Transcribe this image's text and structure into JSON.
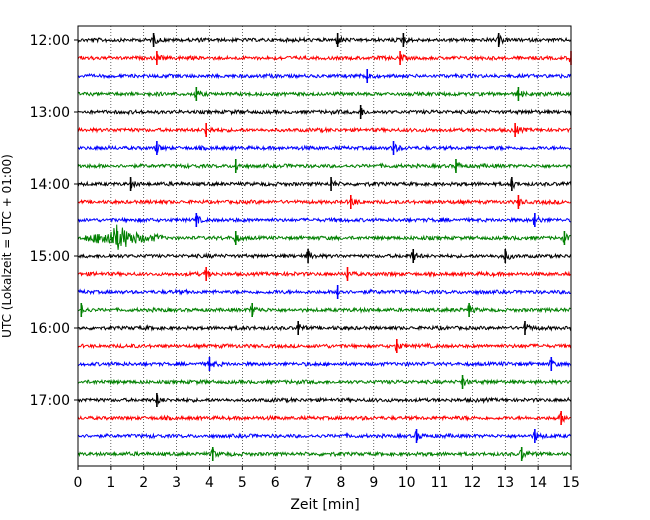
{
  "chart_data": {
    "type": "line",
    "title": "",
    "xlabel": "Zeit  [min]",
    "ylabel": "UTC (Lokalzeit = UTC + 01:00)",
    "xlim": [
      0,
      15
    ],
    "x_ticks": [
      "0",
      "1",
      "2",
      "3",
      "4",
      "5",
      "6",
      "7",
      "8",
      "9",
      "10",
      "11",
      "12",
      "13",
      "14",
      "15"
    ],
    "y_ticks": [
      "12:00",
      "13:00",
      "14:00",
      "15:00",
      "16:00",
      "17:00"
    ],
    "grid": "vertical-dotted",
    "row_interval_minutes": 15,
    "color_cycle": [
      "#000000",
      "#ff0000",
      "#0000ff",
      "#008000"
    ],
    "series": [
      {
        "start": "12:00",
        "color": "#000000",
        "events": [
          2.3,
          7.9,
          9.9,
          12.8
        ]
      },
      {
        "start": "12:15",
        "color": "#ff0000",
        "events": [
          2.4,
          9.8,
          15.0
        ]
      },
      {
        "start": "12:30",
        "color": "#0000ff",
        "events": [
          8.8
        ]
      },
      {
        "start": "12:45",
        "color": "#008000",
        "events": [
          3.6,
          13.4
        ]
      },
      {
        "start": "13:00",
        "color": "#000000",
        "events": [
          8.6
        ]
      },
      {
        "start": "13:15",
        "color": "#ff0000",
        "events": [
          3.9,
          13.3
        ]
      },
      {
        "start": "13:30",
        "color": "#0000ff",
        "events": [
          2.4,
          9.6
        ]
      },
      {
        "start": "13:45",
        "color": "#008000",
        "events": [
          4.8,
          11.5
        ]
      },
      {
        "start": "14:00",
        "color": "#000000",
        "events": [
          1.6,
          7.7,
          13.2
        ]
      },
      {
        "start": "14:15",
        "color": "#ff0000",
        "events": [
          8.3,
          13.4
        ]
      },
      {
        "start": "14:30",
        "color": "#0000ff",
        "events": [
          3.6,
          13.9
        ]
      },
      {
        "start": "14:45",
        "color": "#008000",
        "events": [
          1.2,
          4.8,
          14.8
        ]
      },
      {
        "start": "15:00",
        "color": "#000000",
        "events": [
          7.0,
          10.2,
          13.0
        ]
      },
      {
        "start": "15:15",
        "color": "#ff0000",
        "events": [
          3.9,
          8.2
        ]
      },
      {
        "start": "15:30",
        "color": "#0000ff",
        "events": [
          7.9
        ]
      },
      {
        "start": "15:45",
        "color": "#008000",
        "events": [
          0.1,
          5.3,
          11.9
        ]
      },
      {
        "start": "16:00",
        "color": "#000000",
        "events": [
          6.7,
          13.6
        ]
      },
      {
        "start": "16:15",
        "color": "#ff0000",
        "events": [
          9.7
        ]
      },
      {
        "start": "16:30",
        "color": "#0000ff",
        "events": [
          4.0,
          14.4
        ]
      },
      {
        "start": "16:45",
        "color": "#008000",
        "events": [
          11.7
        ]
      },
      {
        "start": "17:00",
        "color": "#000000",
        "events": [
          2.4
        ]
      },
      {
        "start": "17:15",
        "color": "#ff0000",
        "events": [
          14.7
        ]
      },
      {
        "start": "17:30",
        "color": "#0000ff",
        "events": [
          10.3,
          13.9
        ]
      },
      {
        "start": "17:45",
        "color": "#008000",
        "events": [
          4.1,
          13.5
        ]
      }
    ]
  }
}
